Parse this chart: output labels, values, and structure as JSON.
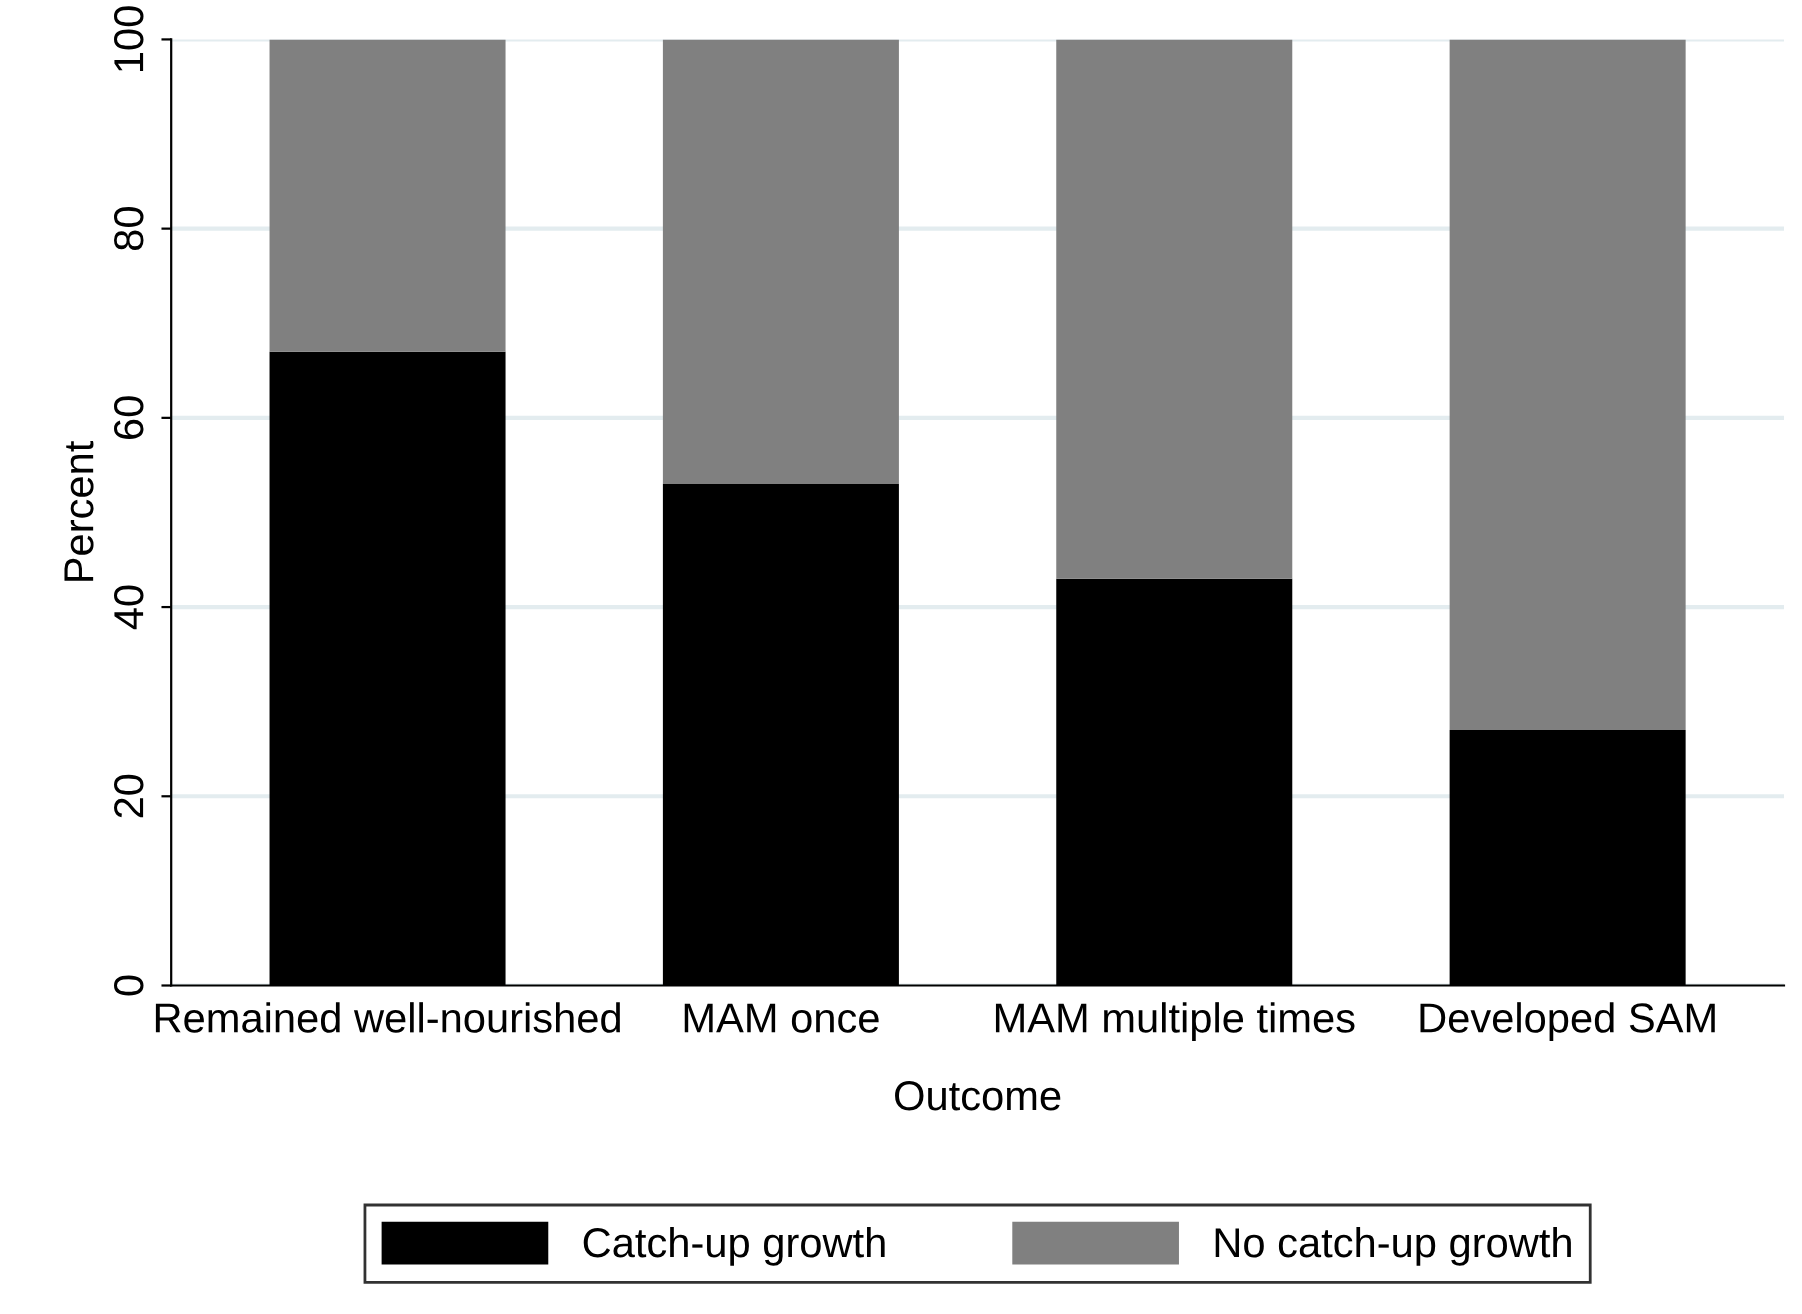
{
  "chart_data": {
    "type": "bar",
    "stacked": true,
    "xlabel": "Outcome",
    "ylabel": "Percent",
    "categories": [
      "Remained well-nourished",
      "MAM once",
      "MAM multiple times",
      "Developed SAM"
    ],
    "series": [
      {
        "name": "Catch-up growth",
        "color": "#000000",
        "values": [
          67,
          53,
          43,
          27
        ]
      },
      {
        "name": "No catch-up growth",
        "color": "#808080",
        "values": [
          33,
          47,
          57,
          73
        ]
      }
    ],
    "ylim": [
      0,
      100
    ],
    "yticks": [
      0,
      20,
      40,
      60,
      80,
      100
    ],
    "grid": "y",
    "legend": "bottom"
  }
}
